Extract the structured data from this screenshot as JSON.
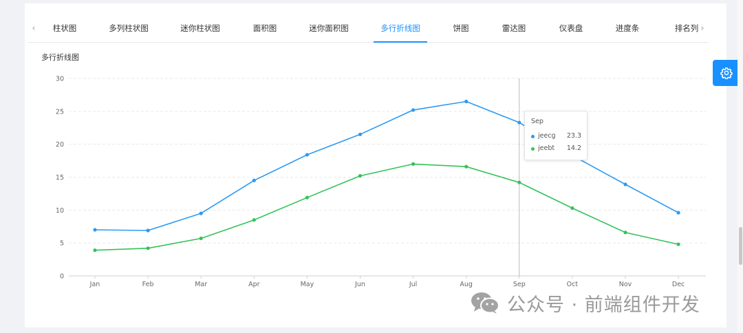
{
  "tabs": {
    "items": [
      "柱状图",
      "多列柱状图",
      "迷你柱状图",
      "面积图",
      "迷你面积图",
      "多行折线图",
      "饼图",
      "雷达图",
      "仪表盘",
      "进度条",
      "排名列"
    ],
    "active_index": 5,
    "prev_icon": "chevron-left-icon",
    "next_icon": "chevron-right-icon"
  },
  "chart_title": "多行折线图",
  "colors": {
    "jeecg": "#2b9af3",
    "jeebt": "#33c25a",
    "accent": "#1890ff"
  },
  "chart_data": {
    "type": "line",
    "categories": [
      "Jan",
      "Feb",
      "Mar",
      "Apr",
      "May",
      "Jun",
      "Jul",
      "Aug",
      "Sep",
      "Oct",
      "Nov",
      "Dec"
    ],
    "series": [
      {
        "name": "jeecg",
        "values": [
          7.0,
          6.9,
          9.5,
          14.5,
          18.4,
          21.5,
          25.2,
          26.5,
          23.3,
          18.3,
          13.9,
          9.6
        ]
      },
      {
        "name": "jeebt",
        "values": [
          3.9,
          4.2,
          5.7,
          8.5,
          11.9,
          15.2,
          17.0,
          16.6,
          14.2,
          10.3,
          6.6,
          4.8
        ]
      }
    ],
    "ylim": [
      0,
      30
    ],
    "yticks": [
      0,
      5,
      10,
      15,
      20,
      25,
      30
    ],
    "grid": true
  },
  "tooltip": {
    "title": "Sep",
    "rows": [
      {
        "name": "jeecg",
        "value": "23.3"
      },
      {
        "name": "jeebt",
        "value": "14.2"
      }
    ]
  },
  "settings_icon": "gear-icon",
  "watermark": {
    "text": "公众号 · 前端组件开发",
    "icon": "wechat-logo-icon"
  }
}
